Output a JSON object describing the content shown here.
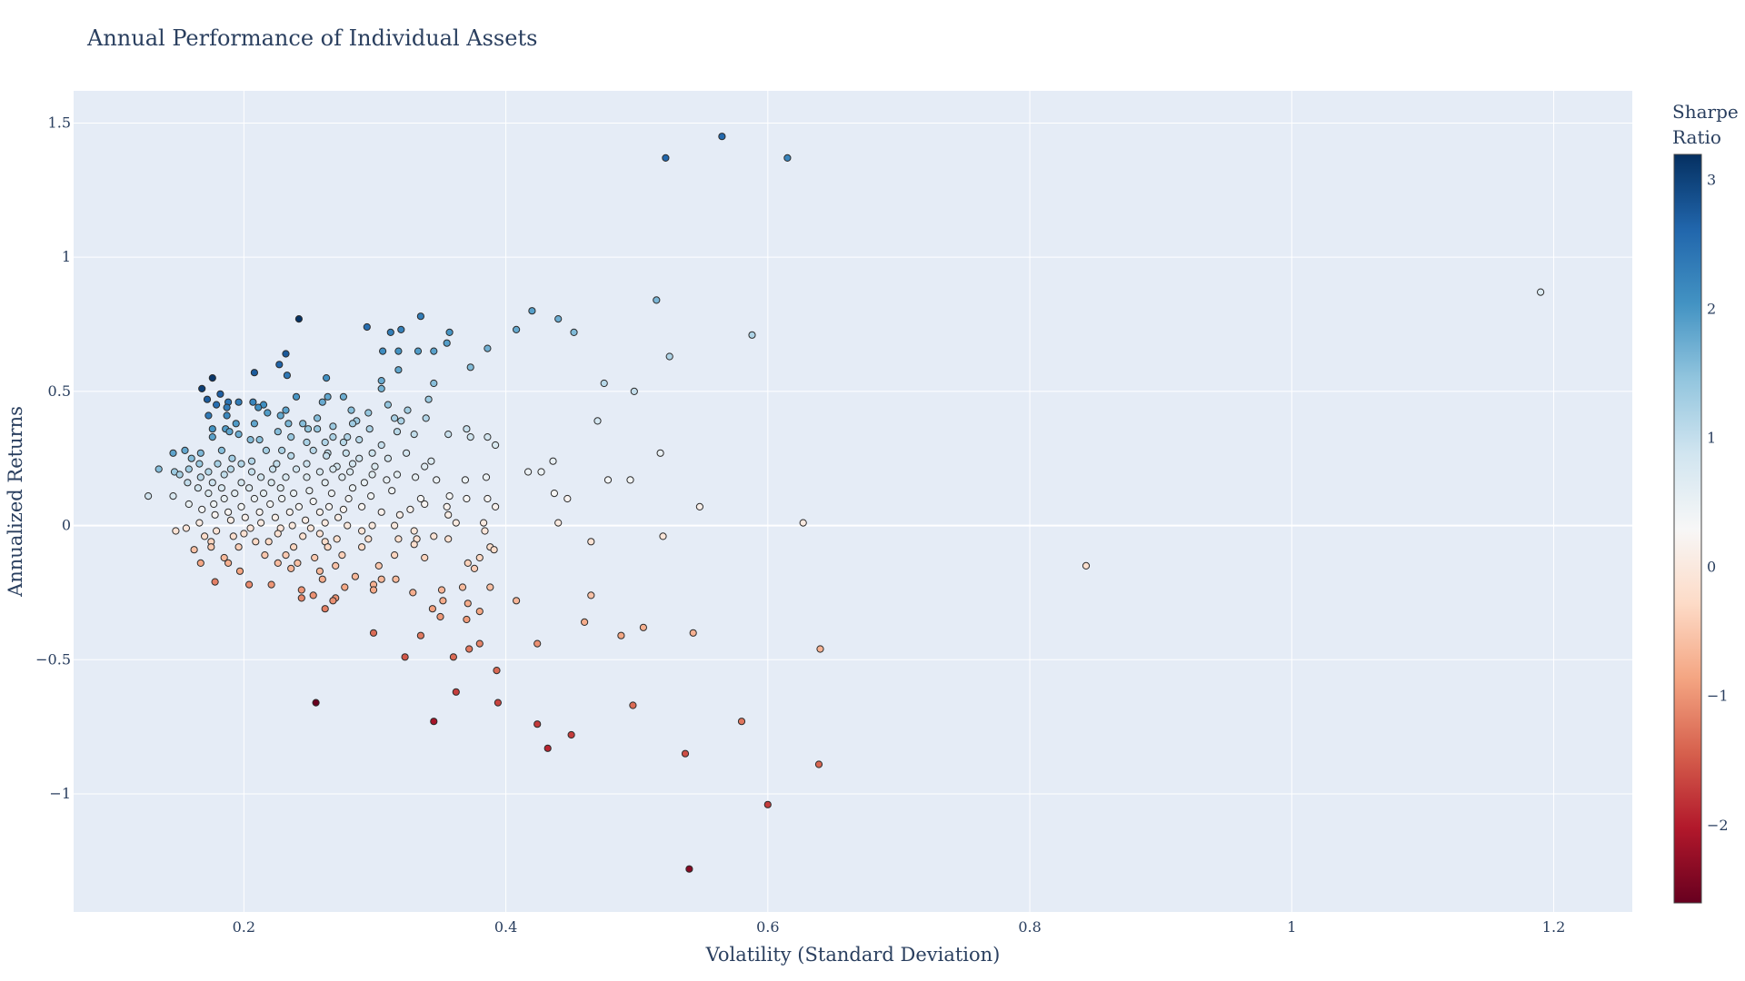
{
  "chart_data": {
    "type": "scatter",
    "title": "Annual Performance of Individual Assets",
    "xlabel": "Volatility (Standard Deviation)",
    "ylabel": "Annualized Returns",
    "xlim": [
      0.07,
      1.26
    ],
    "ylim": [
      -1.44,
      1.62
    ],
    "xticks": [
      {
        "value": 0.2,
        "label": "0.2"
      },
      {
        "value": 0.4,
        "label": "0.4"
      },
      {
        "value": 0.6,
        "label": "0.6"
      },
      {
        "value": 0.8,
        "label": "0.8"
      },
      {
        "value": 1.0,
        "label": "1"
      },
      {
        "value": 1.2,
        "label": "1.2"
      }
    ],
    "yticks": [
      {
        "value": 1.5,
        "label": "1.5"
      },
      {
        "value": 1.0,
        "label": "1"
      },
      {
        "value": 0.5,
        "label": "0.5"
      },
      {
        "value": 0.0,
        "label": "0"
      },
      {
        "value": -0.5,
        "label": "−0.5"
      },
      {
        "value": -1.0,
        "label": "−1"
      }
    ],
    "grid": true,
    "colorbar": {
      "title_lines": [
        "Sharpe",
        "Ratio"
      ],
      "range": [
        -2.6,
        3.2
      ],
      "ticks": [
        {
          "value": 3,
          "label": "3"
        },
        {
          "value": 2,
          "label": "2"
        },
        {
          "value": 1,
          "label": "1"
        },
        {
          "value": 0,
          "label": "0"
        },
        {
          "value": -1,
          "label": "−1"
        },
        {
          "value": -2,
          "label": "−2"
        }
      ],
      "colorscale": [
        "#67001f",
        "#b2182b",
        "#d6604d",
        "#f4a582",
        "#fddbc7",
        "#f7f7f7",
        "#d1e5f0",
        "#92c5de",
        "#4393c3",
        "#2166ac",
        "#053061"
      ]
    },
    "points": [
      [
        0.565,
        1.45
      ],
      [
        0.522,
        1.37
      ],
      [
        0.615,
        1.37
      ],
      [
        1.19,
        0.87
      ],
      [
        0.515,
        0.84
      ],
      [
        0.42,
        0.8
      ],
      [
        0.44,
        0.77
      ],
      [
        0.242,
        0.77
      ],
      [
        0.335,
        0.78
      ],
      [
        0.294,
        0.74
      ],
      [
        0.32,
        0.73
      ],
      [
        0.312,
        0.72
      ],
      [
        0.357,
        0.72
      ],
      [
        0.452,
        0.72
      ],
      [
        0.588,
        0.71
      ],
      [
        0.408,
        0.73
      ],
      [
        0.386,
        0.66
      ],
      [
        0.306,
        0.65
      ],
      [
        0.318,
        0.65
      ],
      [
        0.333,
        0.65
      ],
      [
        0.345,
        0.65
      ],
      [
        0.355,
        0.68
      ],
      [
        0.232,
        0.64
      ],
      [
        0.525,
        0.63
      ],
      [
        0.227,
        0.6
      ],
      [
        0.373,
        0.59
      ],
      [
        0.318,
        0.58
      ],
      [
        0.208,
        0.57
      ],
      [
        0.233,
        0.56
      ],
      [
        0.176,
        0.55
      ],
      [
        0.263,
        0.55
      ],
      [
        0.305,
        0.54
      ],
      [
        0.345,
        0.53
      ],
      [
        0.475,
        0.53
      ],
      [
        0.168,
        0.51
      ],
      [
        0.305,
        0.51
      ],
      [
        0.498,
        0.5
      ],
      [
        0.182,
        0.49
      ],
      [
        0.264,
        0.48
      ],
      [
        0.24,
        0.48
      ],
      [
        0.172,
        0.47
      ],
      [
        0.276,
        0.48
      ],
      [
        0.341,
        0.47
      ],
      [
        0.188,
        0.46
      ],
      [
        0.196,
        0.46
      ],
      [
        0.207,
        0.46
      ],
      [
        0.215,
        0.45
      ],
      [
        0.26,
        0.46
      ],
      [
        0.31,
        0.45
      ],
      [
        0.179,
        0.45
      ],
      [
        0.187,
        0.44
      ],
      [
        0.211,
        0.44
      ],
      [
        0.218,
        0.42
      ],
      [
        0.232,
        0.43
      ],
      [
        0.295,
        0.42
      ],
      [
        0.282,
        0.43
      ],
      [
        0.325,
        0.43
      ],
      [
        0.173,
        0.41
      ],
      [
        0.187,
        0.41
      ],
      [
        0.228,
        0.41
      ],
      [
        0.256,
        0.4
      ],
      [
        0.286,
        0.39
      ],
      [
        0.32,
        0.39
      ],
      [
        0.339,
        0.4
      ],
      [
        0.47,
        0.39
      ],
      [
        0.315,
        0.4
      ],
      [
        0.194,
        0.38
      ],
      [
        0.208,
        0.38
      ],
      [
        0.234,
        0.38
      ],
      [
        0.245,
        0.38
      ],
      [
        0.268,
        0.37
      ],
      [
        0.283,
        0.38
      ],
      [
        0.176,
        0.36
      ],
      [
        0.186,
        0.36
      ],
      [
        0.249,
        0.36
      ],
      [
        0.189,
        0.35
      ],
      [
        0.196,
        0.34
      ],
      [
        0.226,
        0.35
      ],
      [
        0.256,
        0.36
      ],
      [
        0.296,
        0.36
      ],
      [
        0.317,
        0.35
      ],
      [
        0.37,
        0.36
      ],
      [
        0.33,
        0.34
      ],
      [
        0.356,
        0.34
      ],
      [
        0.373,
        0.33
      ],
      [
        0.386,
        0.33
      ],
      [
        0.176,
        0.33
      ],
      [
        0.212,
        0.32
      ],
      [
        0.236,
        0.33
      ],
      [
        0.268,
        0.33
      ],
      [
        0.279,
        0.33
      ],
      [
        0.288,
        0.32
      ],
      [
        0.205,
        0.32
      ],
      [
        0.248,
        0.31
      ],
      [
        0.262,
        0.31
      ],
      [
        0.276,
        0.31
      ],
      [
        0.305,
        0.3
      ],
      [
        0.392,
        0.3
      ],
      [
        0.146,
        0.27
      ],
      [
        0.155,
        0.28
      ],
      [
        0.167,
        0.27
      ],
      [
        0.183,
        0.28
      ],
      [
        0.217,
        0.28
      ],
      [
        0.229,
        0.28
      ],
      [
        0.253,
        0.28
      ],
      [
        0.264,
        0.27
      ],
      [
        0.278,
        0.27
      ],
      [
        0.298,
        0.27
      ],
      [
        0.324,
        0.27
      ],
      [
        0.518,
        0.27
      ],
      [
        0.16,
        0.25
      ],
      [
        0.191,
        0.25
      ],
      [
        0.206,
        0.24
      ],
      [
        0.236,
        0.26
      ],
      [
        0.263,
        0.26
      ],
      [
        0.288,
        0.25
      ],
      [
        0.31,
        0.25
      ],
      [
        0.343,
        0.24
      ],
      [
        0.436,
        0.24
      ],
      [
        0.166,
        0.23
      ],
      [
        0.18,
        0.23
      ],
      [
        0.198,
        0.23
      ],
      [
        0.225,
        0.23
      ],
      [
        0.248,
        0.23
      ],
      [
        0.271,
        0.22
      ],
      [
        0.283,
        0.23
      ],
      [
        0.3,
        0.22
      ],
      [
        0.338,
        0.22
      ],
      [
        0.135,
        0.21
      ],
      [
        0.147,
        0.2
      ],
      [
        0.158,
        0.21
      ],
      [
        0.173,
        0.2
      ],
      [
        0.19,
        0.21
      ],
      [
        0.206,
        0.2
      ],
      [
        0.222,
        0.21
      ],
      [
        0.24,
        0.21
      ],
      [
        0.258,
        0.2
      ],
      [
        0.268,
        0.21
      ],
      [
        0.281,
        0.2
      ],
      [
        0.298,
        0.19
      ],
      [
        0.317,
        0.19
      ],
      [
        0.417,
        0.2
      ],
      [
        0.427,
        0.2
      ],
      [
        0.151,
        0.19
      ],
      [
        0.167,
        0.18
      ],
      [
        0.185,
        0.19
      ],
      [
        0.213,
        0.18
      ],
      [
        0.232,
        0.18
      ],
      [
        0.248,
        0.18
      ],
      [
        0.275,
        0.18
      ],
      [
        0.309,
        0.17
      ],
      [
        0.331,
        0.18
      ],
      [
        0.347,
        0.17
      ],
      [
        0.369,
        0.17
      ],
      [
        0.385,
        0.18
      ],
      [
        0.478,
        0.17
      ],
      [
        0.495,
        0.17
      ],
      [
        0.157,
        0.16
      ],
      [
        0.176,
        0.16
      ],
      [
        0.198,
        0.16
      ],
      [
        0.221,
        0.16
      ],
      [
        0.262,
        0.16
      ],
      [
        0.292,
        0.16
      ],
      [
        0.165,
        0.14
      ],
      [
        0.183,
        0.14
      ],
      [
        0.204,
        0.14
      ],
      [
        0.228,
        0.14
      ],
      [
        0.25,
        0.13
      ],
      [
        0.283,
        0.14
      ],
      [
        0.313,
        0.13
      ],
      [
        0.173,
        0.12
      ],
      [
        0.193,
        0.12
      ],
      [
        0.215,
        0.12
      ],
      [
        0.238,
        0.12
      ],
      [
        0.267,
        0.12
      ],
      [
        0.297,
        0.11
      ],
      [
        0.357,
        0.11
      ],
      [
        0.437,
        0.12
      ],
      [
        0.127,
        0.11
      ],
      [
        0.146,
        0.11
      ],
      [
        0.185,
        0.1
      ],
      [
        0.208,
        0.1
      ],
      [
        0.229,
        0.1
      ],
      [
        0.253,
        0.09
      ],
      [
        0.28,
        0.1
      ],
      [
        0.335,
        0.1
      ],
      [
        0.37,
        0.1
      ],
      [
        0.386,
        0.1
      ],
      [
        0.447,
        0.1
      ],
      [
        0.158,
        0.08
      ],
      [
        0.177,
        0.08
      ],
      [
        0.198,
        0.07
      ],
      [
        0.22,
        0.08
      ],
      [
        0.242,
        0.07
      ],
      [
        0.265,
        0.07
      ],
      [
        0.29,
        0.07
      ],
      [
        0.338,
        0.08
      ],
      [
        0.355,
        0.07
      ],
      [
        0.548,
        0.07
      ],
      [
        0.168,
        0.06
      ],
      [
        0.188,
        0.05
      ],
      [
        0.212,
        0.05
      ],
      [
        0.235,
        0.05
      ],
      [
        0.258,
        0.05
      ],
      [
        0.276,
        0.06
      ],
      [
        0.305,
        0.05
      ],
      [
        0.327,
        0.06
      ],
      [
        0.392,
        0.07
      ],
      [
        0.178,
        0.04
      ],
      [
        0.201,
        0.03
      ],
      [
        0.224,
        0.03
      ],
      [
        0.247,
        0.02
      ],
      [
        0.272,
        0.03
      ],
      [
        0.319,
        0.04
      ],
      [
        0.356,
        0.04
      ],
      [
        0.19,
        0.02
      ],
      [
        0.213,
        0.01
      ],
      [
        0.237,
        0.0
      ],
      [
        0.262,
        0.01
      ],
      [
        0.298,
        0.0
      ],
      [
        0.362,
        0.01
      ],
      [
        0.383,
        0.01
      ],
      [
        0.44,
        0.01
      ],
      [
        0.627,
        0.01
      ],
      [
        0.166,
        0.01
      ],
      [
        0.205,
        -0.01
      ],
      [
        0.228,
        -0.01
      ],
      [
        0.251,
        -0.01
      ],
      [
        0.279,
        0.0
      ],
      [
        0.315,
        0.0
      ],
      [
        0.148,
        -0.02
      ],
      [
        0.156,
        -0.01
      ],
      [
        0.179,
        -0.02
      ],
      [
        0.2,
        -0.03
      ],
      [
        0.226,
        -0.03
      ],
      [
        0.258,
        -0.03
      ],
      [
        0.29,
        -0.02
      ],
      [
        0.33,
        -0.02
      ],
      [
        0.384,
        -0.02
      ],
      [
        0.17,
        -0.04
      ],
      [
        0.192,
        -0.04
      ],
      [
        0.245,
        -0.04
      ],
      [
        0.271,
        -0.05
      ],
      [
        0.318,
        -0.05
      ],
      [
        0.345,
        -0.04
      ],
      [
        0.356,
        -0.05
      ],
      [
        0.52,
        -0.04
      ],
      [
        0.175,
        -0.06
      ],
      [
        0.209,
        -0.06
      ],
      [
        0.219,
        -0.06
      ],
      [
        0.262,
        -0.06
      ],
      [
        0.295,
        -0.05
      ],
      [
        0.332,
        -0.05
      ],
      [
        0.388,
        -0.08
      ],
      [
        0.465,
        -0.06
      ],
      [
        0.162,
        -0.09
      ],
      [
        0.175,
        -0.08
      ],
      [
        0.196,
        -0.08
      ],
      [
        0.238,
        -0.08
      ],
      [
        0.264,
        -0.08
      ],
      [
        0.29,
        -0.08
      ],
      [
        0.33,
        -0.07
      ],
      [
        0.391,
        -0.09
      ],
      [
        0.185,
        -0.12
      ],
      [
        0.216,
        -0.11
      ],
      [
        0.232,
        -0.11
      ],
      [
        0.254,
        -0.12
      ],
      [
        0.275,
        -0.11
      ],
      [
        0.315,
        -0.11
      ],
      [
        0.338,
        -0.12
      ],
      [
        0.38,
        -0.12
      ],
      [
        0.167,
        -0.14
      ],
      [
        0.188,
        -0.14
      ],
      [
        0.226,
        -0.14
      ],
      [
        0.241,
        -0.14
      ],
      [
        0.27,
        -0.15
      ],
      [
        0.303,
        -0.15
      ],
      [
        0.371,
        -0.14
      ],
      [
        0.376,
        -0.16
      ],
      [
        0.197,
        -0.17
      ],
      [
        0.236,
        -0.16
      ],
      [
        0.258,
        -0.17
      ],
      [
        0.285,
        -0.19
      ],
      [
        0.305,
        -0.2
      ],
      [
        0.316,
        -0.2
      ],
      [
        0.26,
        -0.2
      ],
      [
        0.178,
        -0.21
      ],
      [
        0.204,
        -0.22
      ],
      [
        0.221,
        -0.22
      ],
      [
        0.299,
        -0.22
      ],
      [
        0.244,
        -0.24
      ],
      [
        0.277,
        -0.23
      ],
      [
        0.299,
        -0.24
      ],
      [
        0.351,
        -0.24
      ],
      [
        0.367,
        -0.23
      ],
      [
        0.388,
        -0.23
      ],
      [
        0.253,
        -0.26
      ],
      [
        0.27,
        -0.27
      ],
      [
        0.329,
        -0.25
      ],
      [
        0.465,
        -0.26
      ],
      [
        0.244,
        -0.27
      ],
      [
        0.268,
        -0.28
      ],
      [
        0.352,
        -0.28
      ],
      [
        0.371,
        -0.29
      ],
      [
        0.408,
        -0.28
      ],
      [
        0.262,
        -0.31
      ],
      [
        0.344,
        -0.31
      ],
      [
        0.38,
        -0.32
      ],
      [
        0.35,
        -0.34
      ],
      [
        0.46,
        -0.36
      ],
      [
        0.37,
        -0.35
      ],
      [
        0.505,
        -0.38
      ],
      [
        0.335,
        -0.41
      ],
      [
        0.299,
        -0.4
      ],
      [
        0.488,
        -0.41
      ],
      [
        0.543,
        -0.4
      ],
      [
        0.38,
        -0.44
      ],
      [
        0.424,
        -0.44
      ],
      [
        0.372,
        -0.46
      ],
      [
        0.64,
        -0.46
      ],
      [
        0.323,
        -0.49
      ],
      [
        0.36,
        -0.49
      ],
      [
        0.393,
        -0.54
      ],
      [
        0.362,
        -0.62
      ],
      [
        0.255,
        -0.66
      ],
      [
        0.394,
        -0.66
      ],
      [
        0.497,
        -0.67
      ],
      [
        0.345,
        -0.73
      ],
      [
        0.58,
        -0.73
      ],
      [
        0.424,
        -0.74
      ],
      [
        0.45,
        -0.78
      ],
      [
        0.432,
        -0.83
      ],
      [
        0.537,
        -0.85
      ],
      [
        0.639,
        -0.89
      ],
      [
        0.6,
        -1.04
      ],
      [
        0.54,
        -1.28
      ],
      [
        0.843,
        -0.15
      ]
    ]
  }
}
